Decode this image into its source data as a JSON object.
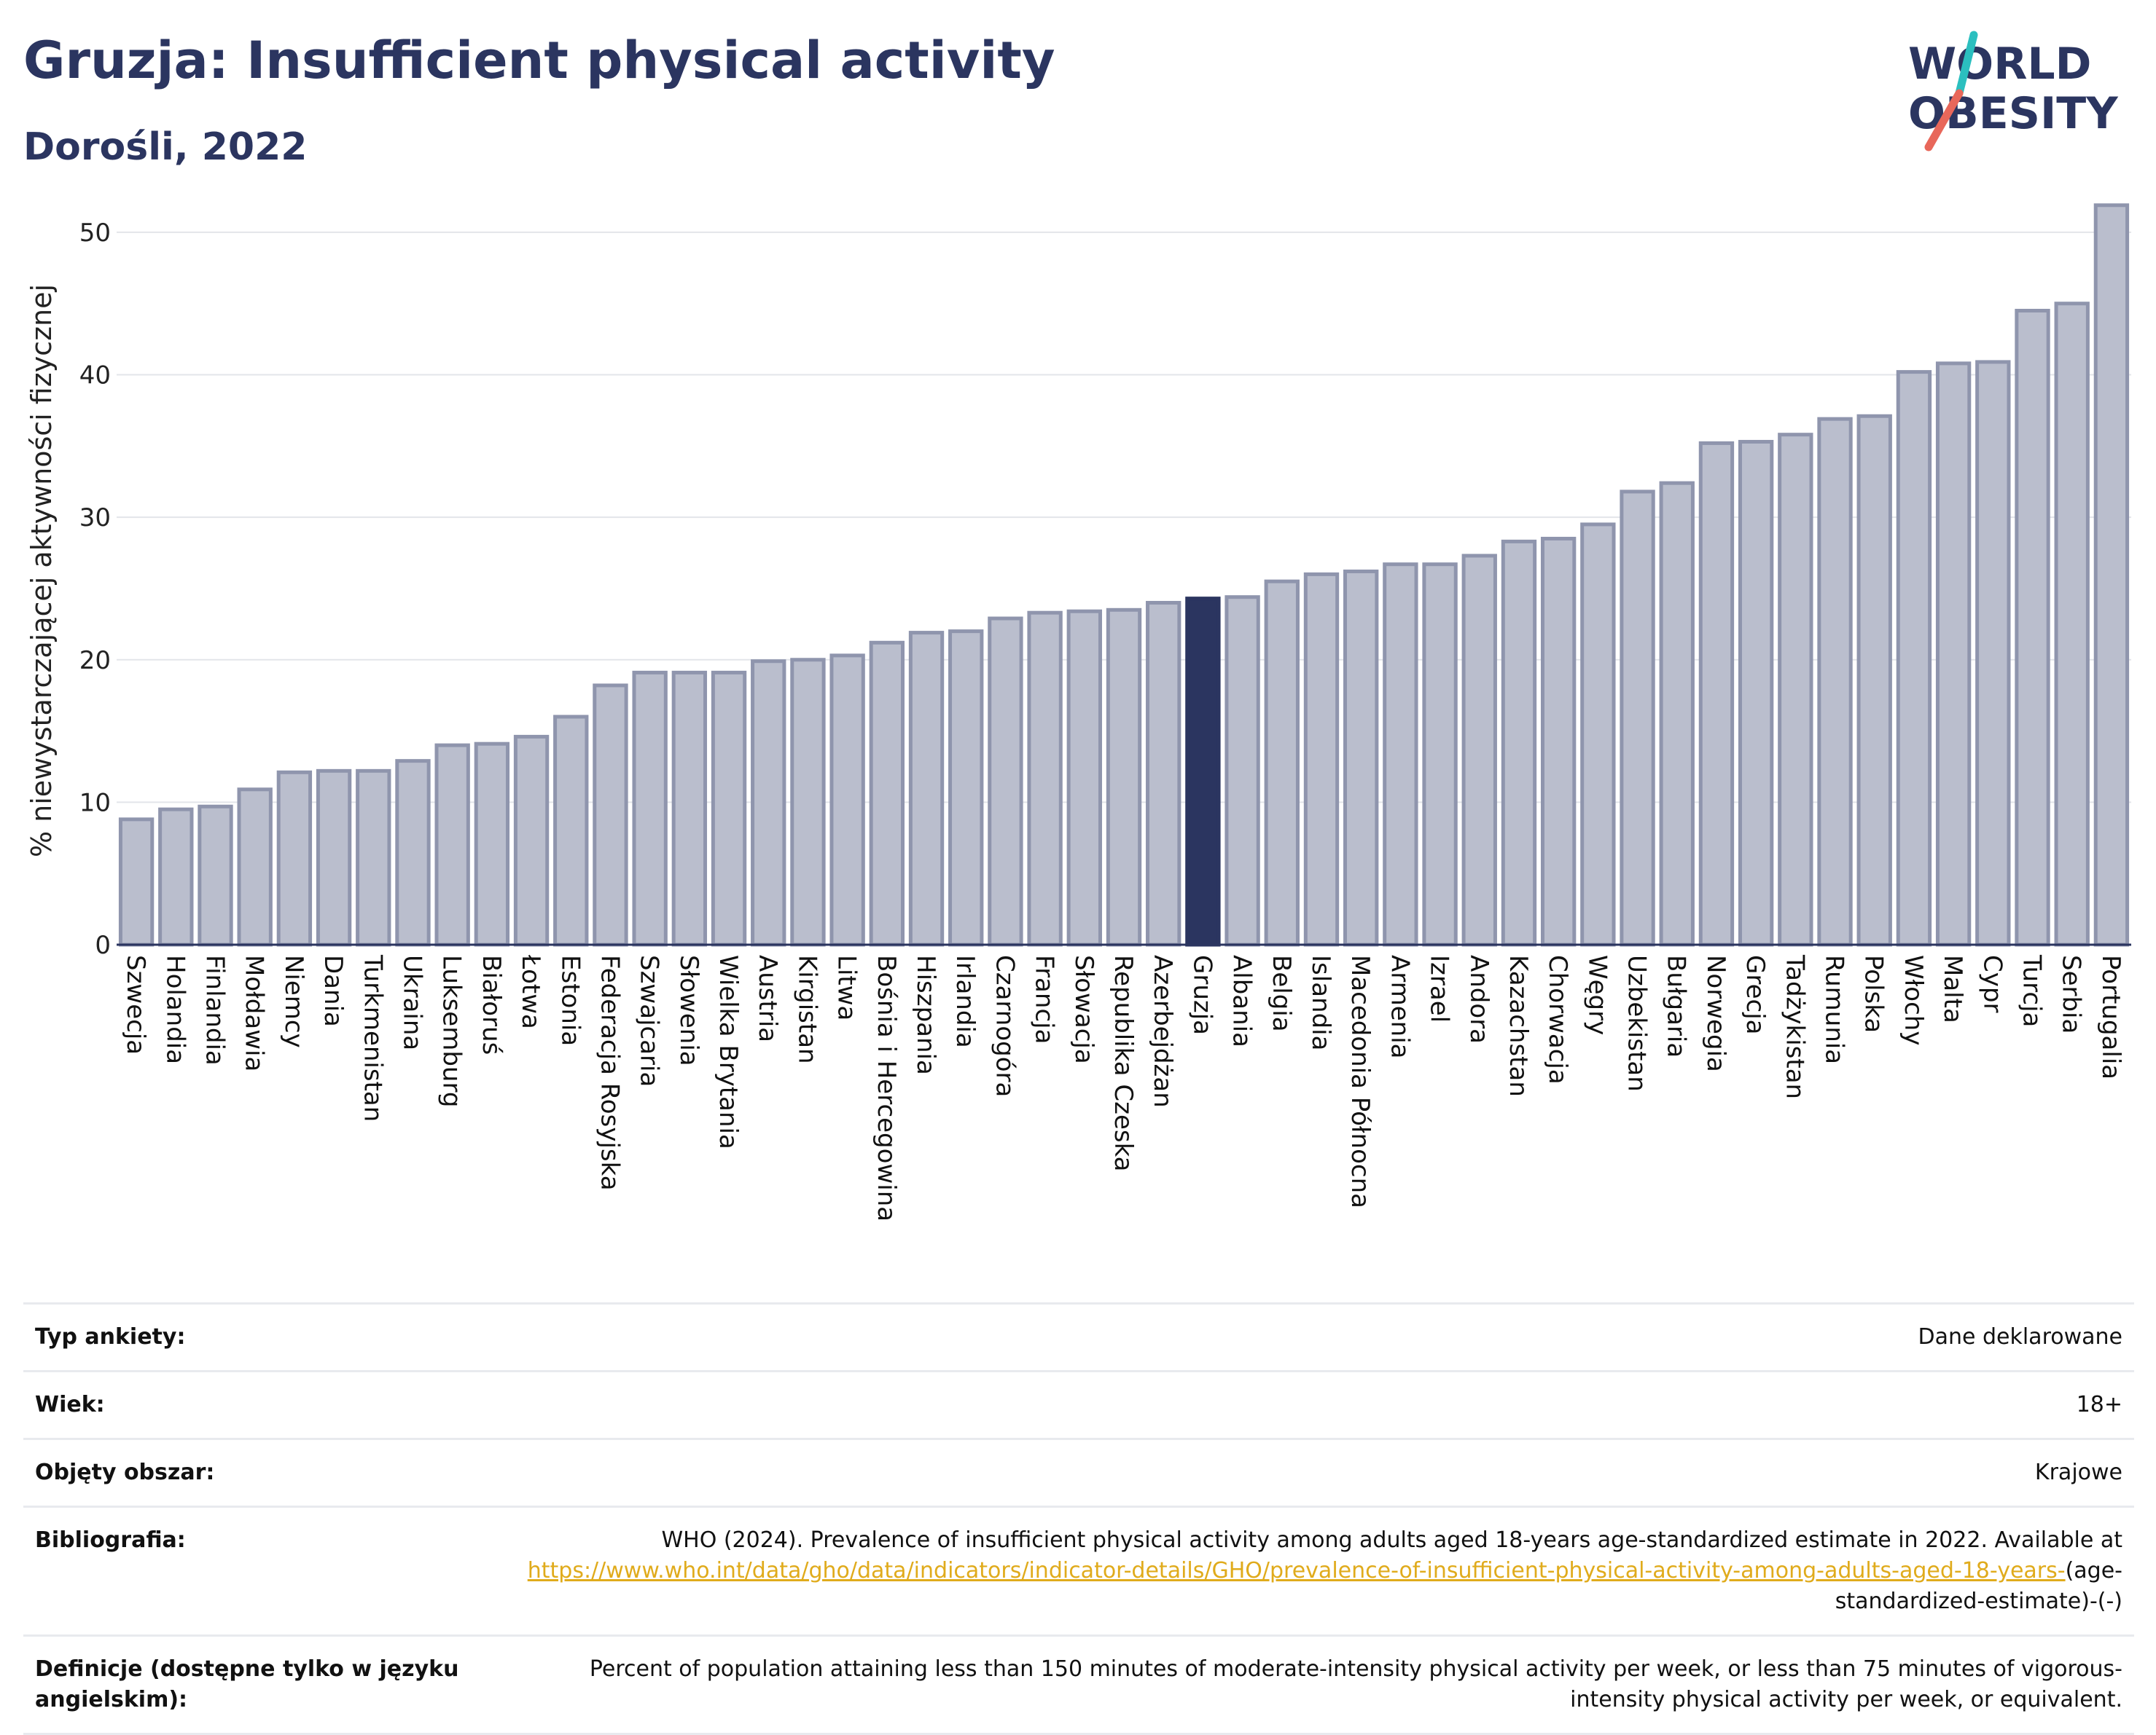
{
  "header": {
    "title": "Gruzja: Insufficient physical activity",
    "subtitle": "Dorośli, 2022"
  },
  "logo": {
    "line1": "WORLD",
    "line2": "OBESITY"
  },
  "colors": {
    "bar": "#babecd",
    "bar_edge": "#8f95ad",
    "highlight": "#2b3560",
    "logo_teal": "#2bbfbf",
    "logo_red": "#e8675a"
  },
  "chart_data": {
    "type": "bar",
    "ylabel": "% niewystarczającej aktywności fizycznej",
    "ylim": [
      0,
      52.5
    ],
    "yticks": [
      0,
      10,
      20,
      30,
      40,
      50
    ],
    "grid": true,
    "highlight": "Gruzja",
    "categories": [
      "Szwecja",
      "Holandia",
      "Finlandia",
      "Mołdawia",
      "Niemcy",
      "Dania",
      "Turkmenistan",
      "Ukraina",
      "Luksemburg",
      "Białoruś",
      "Łotwa",
      "Estonia",
      "Federacja Rosyjska",
      "Szwajcaria",
      "Słowenia",
      "Wielka Brytania",
      "Austria",
      "Kirgistan",
      "Litwa",
      "Bośnia i Hercegowina",
      "Hiszpania",
      "Irlandia",
      "Czarnogóra",
      "Francja",
      "Słowacja",
      "Republika Czeska",
      "Azerbejdżan",
      "Gruzja",
      "Albania",
      "Belgia",
      "Islandia",
      "Macedonia Północna",
      "Armenia",
      "Izrael",
      "Andora",
      "Kazachstan",
      "Chorwacja",
      "Węgry",
      "Uzbekistan",
      "Bułgaria",
      "Norwegia",
      "Grecja",
      "Tadżykistan",
      "Rumunia",
      "Polska",
      "Włochy",
      "Malta",
      "Cypr",
      "Turcja",
      "Serbia",
      "Portugalia"
    ],
    "values": [
      8.8,
      9.5,
      9.7,
      10.9,
      12.1,
      12.2,
      12.2,
      12.9,
      14.0,
      14.1,
      14.6,
      16.0,
      18.2,
      19.1,
      19.1,
      19.1,
      19.9,
      20.0,
      20.3,
      21.2,
      21.9,
      22.0,
      22.9,
      23.3,
      23.4,
      23.5,
      24.0,
      24.3,
      24.4,
      25.5,
      26.0,
      26.2,
      26.7,
      26.7,
      27.3,
      28.3,
      28.5,
      29.5,
      31.8,
      32.4,
      35.2,
      35.3,
      35.8,
      36.9,
      37.1,
      40.2,
      40.8,
      40.9,
      44.5,
      45.0,
      51.9
    ]
  },
  "meta": {
    "rows": [
      {
        "label": "Typ ankiety:",
        "value": "Dane deklarowane"
      },
      {
        "label": "Wiek:",
        "value": "18+"
      },
      {
        "label": "Objęty obszar:",
        "value": "Krajowe"
      }
    ],
    "bibliography": {
      "label": "Bibliografia:",
      "text": "WHO (2024). Prevalence of insufficient physical activity among adults aged 18-years age-standardized estimate in 2022. Available at",
      "link": "https://www.who.int/data/gho/data/indicators/indicator-details/GHO/prevalence-of-insufficient-physical-activity-among-adults-aged-18-years-",
      "suffix": "(age-standardized-estimate)-(-)"
    },
    "definitions": {
      "label": "Definicje (dostępne tylko w języku angielskim):",
      "value": "Percent of population attaining less than 150 minutes of moderate-intensity physical activity per week, or less than 75 minutes of vigorous-intensity physical activity per week, or equivalent."
    }
  }
}
